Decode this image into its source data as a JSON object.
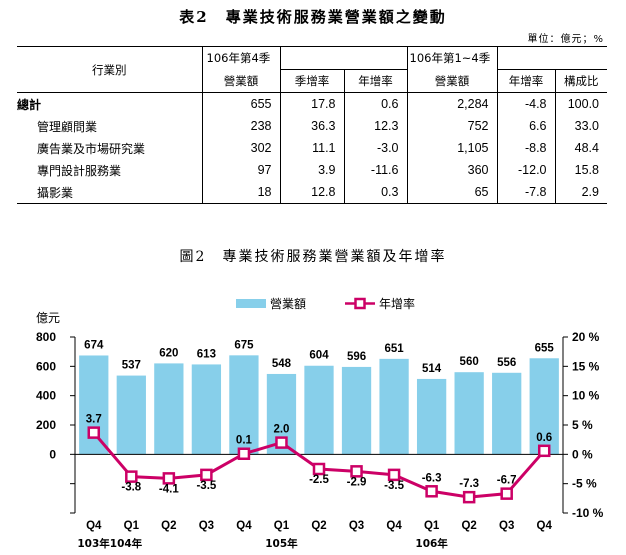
{
  "table2": {
    "title": "表2　專業技術服務業營業額之變動",
    "unit": "單位：億元；%",
    "row_header": "行業別",
    "group1": "106年第4季",
    "group2": "106年第1~4季",
    "col_revenue": "營業額",
    "col_qoq": "季增率",
    "col_yoy": "年增率",
    "col_share": "構成比",
    "rows": [
      {
        "name": "總計",
        "q4_revenue": "655",
        "q4_qoq": "17.8",
        "q4_yoy": "0.6",
        "y_revenue": "2,284",
        "y_yoy": "-4.8",
        "y_share": "100.0"
      },
      {
        "name": "管理顧問業",
        "q4_revenue": "238",
        "q4_qoq": "36.3",
        "q4_yoy": "12.3",
        "y_revenue": "752",
        "y_yoy": "6.6",
        "y_share": "33.0"
      },
      {
        "name": "廣告業及市場研究業",
        "q4_revenue": "302",
        "q4_qoq": "11.1",
        "q4_yoy": "-3.0",
        "y_revenue": "1,105",
        "y_yoy": "-8.8",
        "y_share": "48.4"
      },
      {
        "name": "專門設計服務業",
        "q4_revenue": "97",
        "q4_qoq": "3.9",
        "q4_yoy": "-11.6",
        "y_revenue": "360",
        "y_yoy": "-12.0",
        "y_share": "15.8"
      },
      {
        "name": "攝影業",
        "q4_revenue": "18",
        "q4_qoq": "12.8",
        "q4_yoy": "0.3",
        "y_revenue": "65",
        "y_yoy": "-7.8",
        "y_share": "2.9"
      }
    ]
  },
  "colors": {
    "bar": "#87cfea",
    "line": "#cc0066"
  },
  "chart_data": {
    "type": "bar",
    "title": "圖2　專業技術服務業營業額及年增率",
    "ylabel_left": "億元",
    "categories": [
      "Q4",
      "Q1",
      "Q2",
      "Q3",
      "Q4",
      "Q1",
      "Q2",
      "Q3",
      "Q4",
      "Q1",
      "Q2",
      "Q3",
      "Q4"
    ],
    "year_labels": [
      {
        "label": "103年",
        "index": 0
      },
      {
        "label": "104年",
        "index": 1
      },
      {
        "label": "105年",
        "index": 5
      },
      {
        "label": "106年",
        "index": 9
      }
    ],
    "left_axis": {
      "ticks": [
        "800",
        "600",
        "400",
        "200",
        "0"
      ],
      "min": -400,
      "max": 800
    },
    "right_axis": {
      "ticks": [
        "20 %",
        "15 %",
        "10 %",
        "5 %",
        "0 %",
        "-5 %",
        "-10 %"
      ],
      "min": -10,
      "max": 20
    },
    "legend_position": "top-center",
    "series": [
      {
        "name": "營業額",
        "type": "bar",
        "axis": "left",
        "values": [
          674,
          537,
          620,
          613,
          675,
          548,
          604,
          596,
          651,
          514,
          560,
          556,
          655
        ],
        "labels": [
          "674",
          "537",
          "620",
          "613",
          "675",
          "548",
          "604",
          "596",
          "651",
          "514",
          "560",
          "556",
          "655"
        ]
      },
      {
        "name": "年增率",
        "type": "line",
        "axis": "right",
        "values": [
          3.7,
          -3.8,
          -4.1,
          -3.5,
          0.1,
          2.0,
          -2.5,
          -2.9,
          -3.5,
          -6.3,
          -7.3,
          -6.7,
          0.6
        ],
        "labels": [
          "3.7",
          "-3.8",
          "-4.1",
          "-3.5",
          "0.1",
          "2.0",
          "-2.5",
          "-2.9",
          "-3.5",
          "-6.3",
          "-7.3",
          "-6.7",
          "0.6"
        ]
      }
    ]
  }
}
